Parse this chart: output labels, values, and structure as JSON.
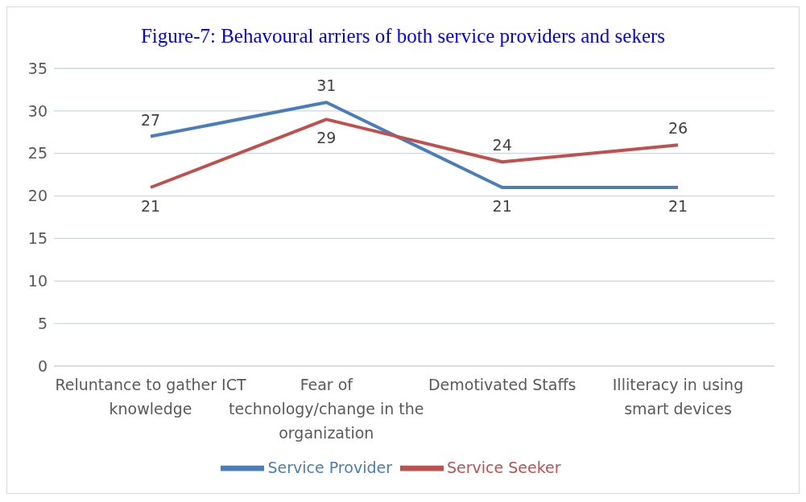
{
  "chart_data": {
    "type": "line",
    "title": "Figure-7: Behavoural arriers of both service providers and sekers",
    "categories": [
      "Reluntance to gather ICT knowledge",
      "Fear of technology/change in the organization",
      "Demotivated Staffs",
      "Illiteracy in using smart devices"
    ],
    "series": [
      {
        "name": "Service Provider",
        "color": "#4a7ebb",
        "values": [
          27,
          31,
          21,
          21
        ]
      },
      {
        "name": "Service Seeker",
        "color": "#c0504d",
        "values": [
          21,
          29,
          24,
          26
        ]
      }
    ],
    "ylim": [
      0,
      35
    ],
    "yticks": [
      0,
      5,
      10,
      15,
      20,
      25,
      30,
      35
    ],
    "grid": "y",
    "legend": "bottom",
    "data_labels": true,
    "marker": "none",
    "line_style": "solid"
  }
}
